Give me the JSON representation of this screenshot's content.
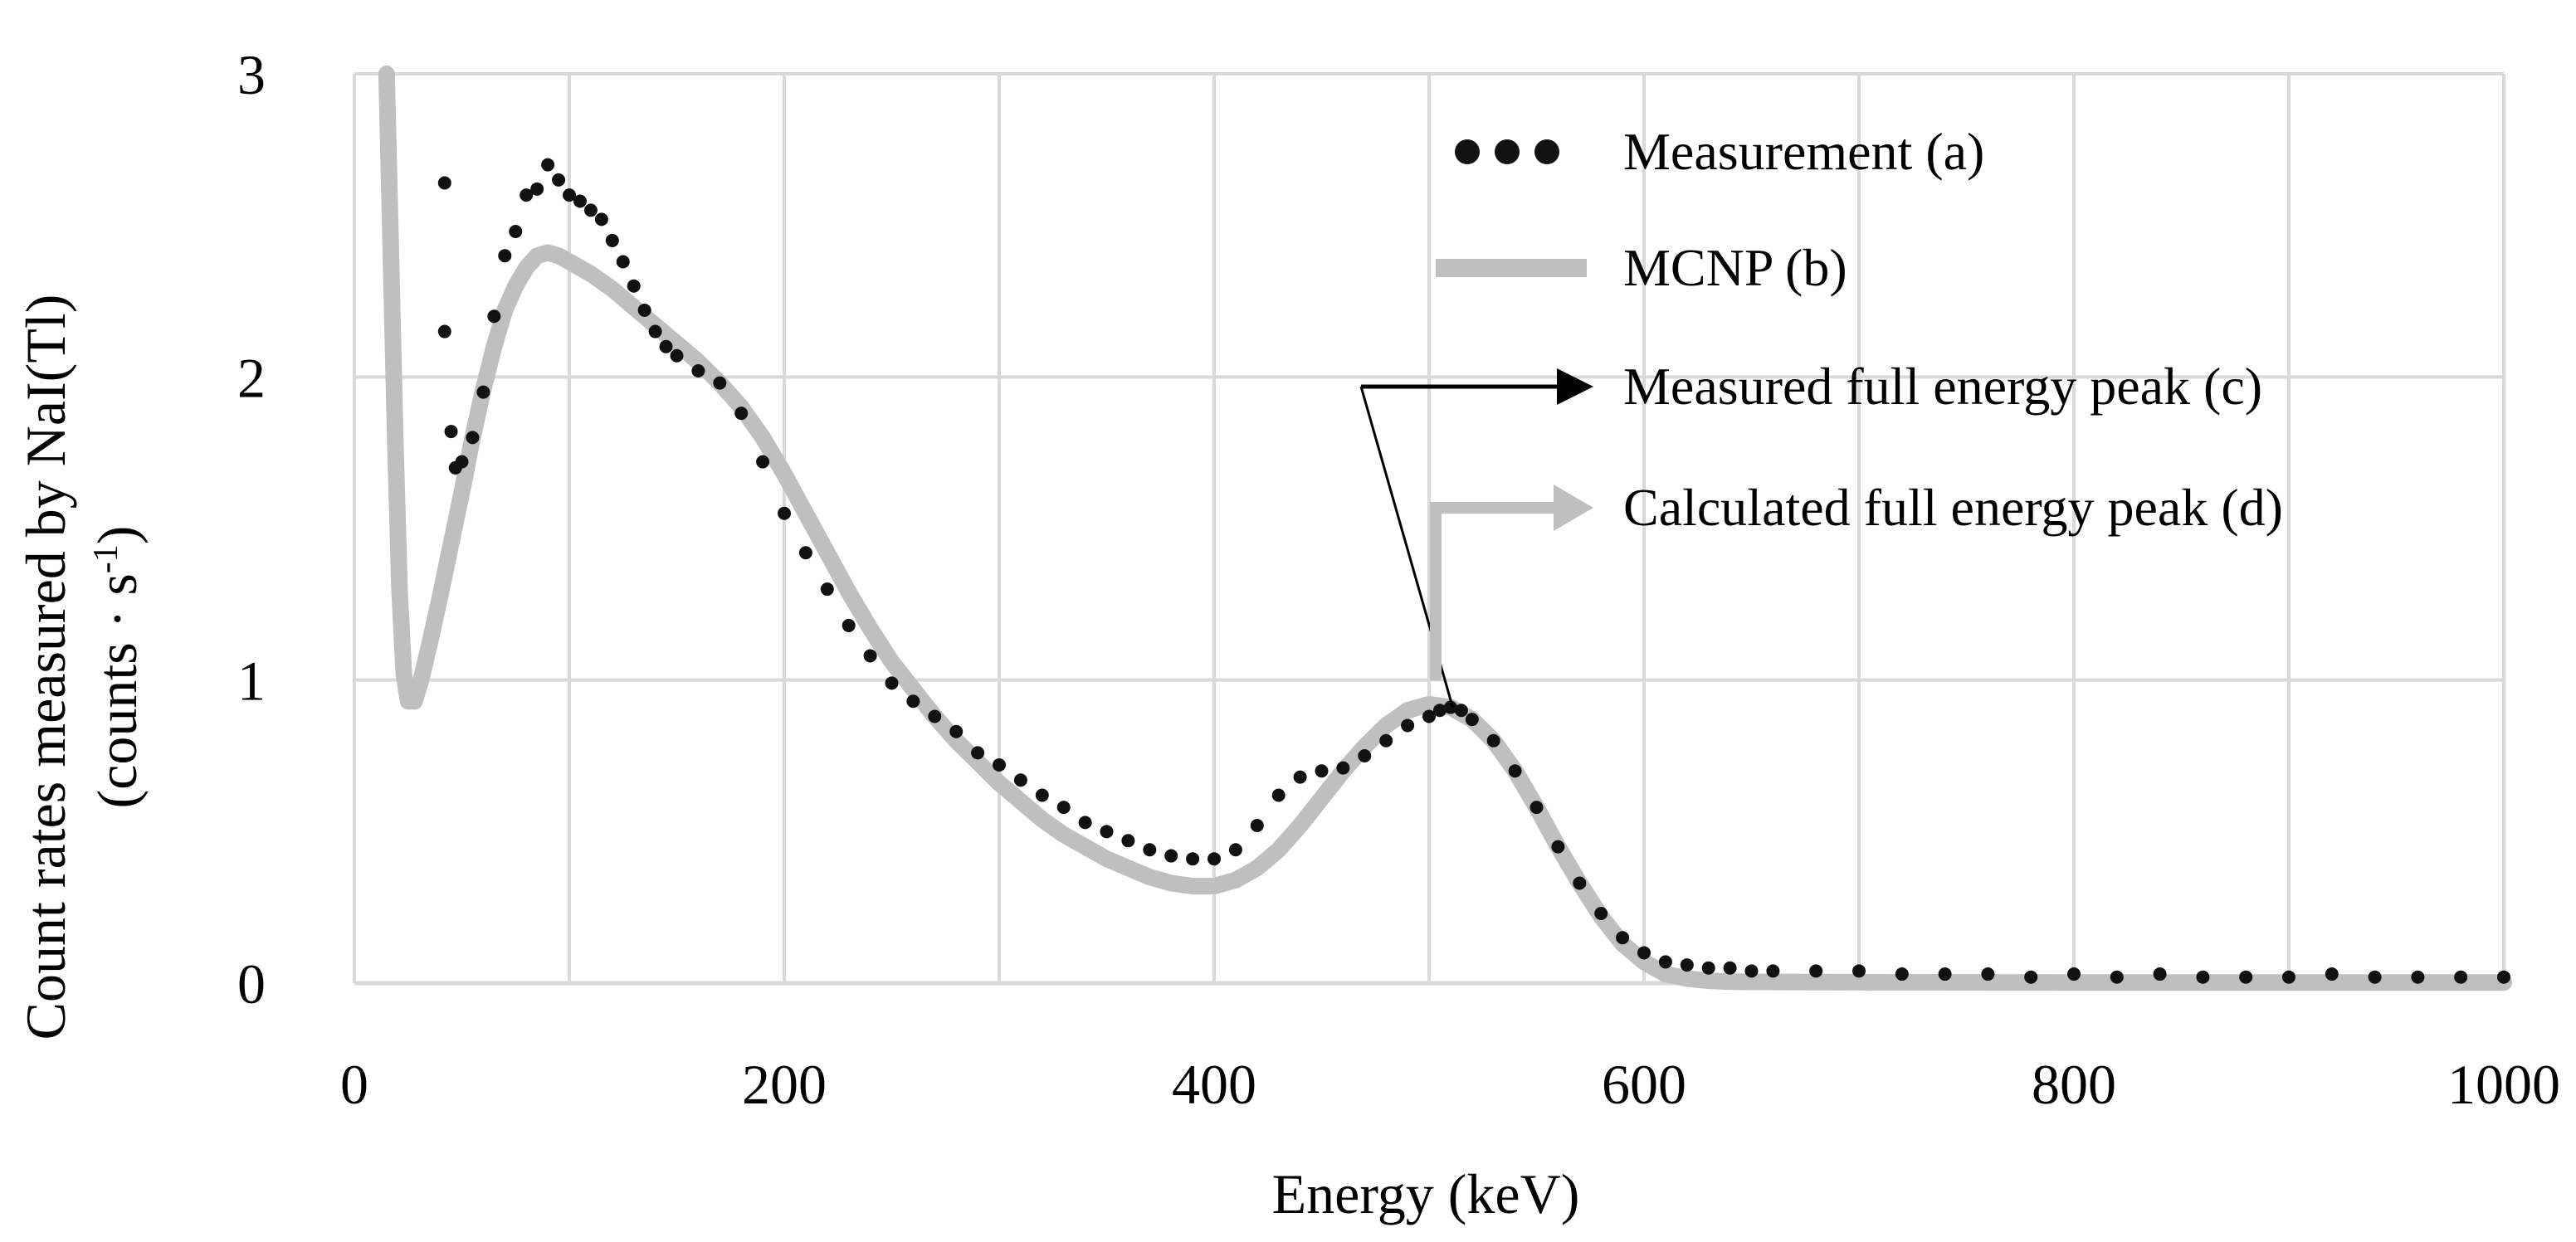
{
  "chart_data": {
    "type": "scatter+line",
    "title": "",
    "xlabel": "Energy (keV)",
    "ylabel_line1": "Count rates measured by NaI(Tl)",
    "ylabel_line2_prefix": "(counts · s",
    "ylabel_line2_sup": "-1",
    "ylabel_line2_suffix": ")",
    "xlim": [
      0,
      1000
    ],
    "ylim": [
      0,
      3
    ],
    "xticks": [
      "0",
      "200",
      "400",
      "600",
      "800",
      "1000"
    ],
    "yticks": [
      "0",
      "1",
      "2",
      "3"
    ],
    "grid": true,
    "legend_position": "top-right",
    "colors": {
      "measurement": "#111111",
      "mcnp": "#bfbfbf",
      "grid": "#d9d9d9",
      "arrow_c": "#000000",
      "arrow_d": "#bfbfbf"
    },
    "legend": [
      {
        "key": "a",
        "label": "Measurement (a)",
        "symbol": "dots"
      },
      {
        "key": "b",
        "label": "MCNP (b)",
        "symbol": "thick-line"
      },
      {
        "key": "c",
        "label": "Measured full energy peak (c)",
        "symbol": "arrow-black"
      },
      {
        "key": "d",
        "label": "Calculated full energy peak (d)",
        "symbol": "arrow-gray"
      }
    ],
    "series": [
      {
        "name": "Measurement (a)",
        "kind": "scatter",
        "x": [
          42,
          42,
          45,
          47,
          50,
          55,
          60,
          65,
          70,
          75,
          80,
          85,
          90,
          95,
          100,
          105,
          110,
          115,
          120,
          125,
          130,
          135,
          140,
          145,
          150,
          160,
          170,
          180,
          190,
          200,
          210,
          220,
          230,
          240,
          250,
          260,
          270,
          280,
          290,
          300,
          310,
          320,
          330,
          340,
          350,
          360,
          370,
          380,
          390,
          400,
          410,
          420,
          430,
          440,
          450,
          460,
          470,
          480,
          490,
          500,
          505,
          510,
          515,
          520,
          530,
          540,
          550,
          560,
          570,
          580,
          590,
          600,
          610,
          620,
          630,
          640,
          650,
          660,
          680,
          700,
          720,
          740,
          760,
          780,
          800,
          820,
          840,
          860,
          880,
          900,
          920,
          940,
          960,
          980,
          1000
        ],
        "y": [
          2.64,
          2.15,
          1.82,
          1.7,
          1.72,
          1.8,
          1.95,
          2.2,
          2.4,
          2.48,
          2.6,
          2.62,
          2.7,
          2.65,
          2.6,
          2.58,
          2.55,
          2.52,
          2.45,
          2.38,
          2.3,
          2.22,
          2.15,
          2.1,
          2.07,
          2.02,
          1.98,
          1.88,
          1.72,
          1.55,
          1.42,
          1.3,
          1.18,
          1.08,
          0.99,
          0.93,
          0.88,
          0.83,
          0.76,
          0.72,
          0.67,
          0.62,
          0.58,
          0.53,
          0.5,
          0.47,
          0.44,
          0.42,
          0.41,
          0.41,
          0.44,
          0.52,
          0.62,
          0.68,
          0.7,
          0.71,
          0.75,
          0.8,
          0.85,
          0.88,
          0.9,
          0.91,
          0.9,
          0.87,
          0.8,
          0.7,
          0.58,
          0.45,
          0.33,
          0.23,
          0.15,
          0.1,
          0.07,
          0.06,
          0.05,
          0.05,
          0.04,
          0.04,
          0.04,
          0.04,
          0.03,
          0.03,
          0.03,
          0.02,
          0.03,
          0.02,
          0.03,
          0.02,
          0.02,
          0.02,
          0.03,
          0.02,
          0.02,
          0.02,
          0.02
        ]
      },
      {
        "name": "MCNP (b)",
        "kind": "line",
        "x": [
          15,
          17,
          19,
          21,
          23,
          25,
          28,
          31,
          35,
          40,
          45,
          50,
          55,
          60,
          65,
          70,
          75,
          80,
          85,
          90,
          95,
          100,
          110,
          120,
          130,
          140,
          150,
          160,
          170,
          180,
          190,
          200,
          210,
          220,
          230,
          240,
          250,
          260,
          270,
          280,
          290,
          300,
          310,
          320,
          330,
          340,
          350,
          360,
          370,
          380,
          390,
          400,
          410,
          420,
          430,
          440,
          450,
          460,
          470,
          480,
          490,
          500,
          510,
          520,
          530,
          540,
          550,
          560,
          570,
          580,
          590,
          600,
          610,
          620,
          630,
          640,
          650,
          700,
          800,
          900,
          1000
        ],
        "y": [
          3.0,
          2.4,
          1.8,
          1.3,
          1.02,
          0.93,
          0.93,
          1.0,
          1.12,
          1.28,
          1.45,
          1.62,
          1.8,
          1.96,
          2.1,
          2.22,
          2.3,
          2.36,
          2.4,
          2.41,
          2.4,
          2.38,
          2.34,
          2.29,
          2.23,
          2.17,
          2.11,
          2.05,
          1.98,
          1.9,
          1.8,
          1.68,
          1.55,
          1.42,
          1.29,
          1.17,
          1.06,
          0.97,
          0.88,
          0.8,
          0.73,
          0.66,
          0.6,
          0.54,
          0.49,
          0.45,
          0.41,
          0.38,
          0.35,
          0.33,
          0.32,
          0.32,
          0.34,
          0.38,
          0.44,
          0.52,
          0.61,
          0.7,
          0.78,
          0.85,
          0.9,
          0.92,
          0.91,
          0.87,
          0.8,
          0.7,
          0.58,
          0.45,
          0.33,
          0.22,
          0.13,
          0.07,
          0.03,
          0.015,
          0.008,
          0.005,
          0.004,
          0.003,
          0.002,
          0.002,
          0.002
        ]
      }
    ],
    "annotations": [
      {
        "label": "Measured full energy peak (c)",
        "peak_energy": 511,
        "peak_count_rate": 0.91
      },
      {
        "label": "Calculated full energy peak (d)",
        "peak_energy": 510,
        "peak_count_rate": 0.92
      }
    ]
  }
}
